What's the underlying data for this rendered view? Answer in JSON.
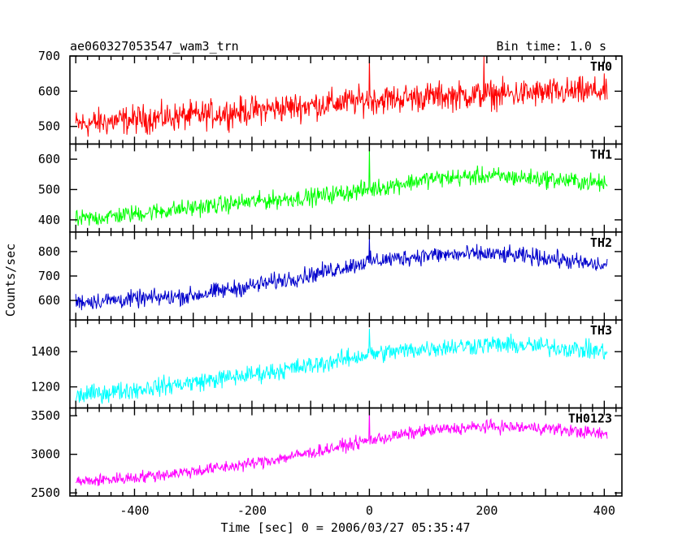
{
  "header": {
    "title": "ae060327053547_wam3_trn",
    "bin_time": "Bin time: 1.0 s"
  },
  "axes": {
    "xlabel": "Time [sec] 0 = 2006/03/27 05:35:47",
    "ylabel": "Counts/sec"
  },
  "chart_data": {
    "type": "line",
    "title": "ae060327053547_wam3_trn",
    "xlabel": "Time [sec] 0 = 2006/03/27 05:35:47",
    "ylabel": "Counts/sec",
    "xlim": [
      -510,
      430
    ],
    "x_ticks": [
      -400,
      -200,
      0,
      200,
      400
    ],
    "bin_time_s": 1.0,
    "panels": [
      {
        "name": "TH0",
        "color": "#ff0000",
        "ylim": [
          450,
          700
        ],
        "y_ticks": [
          500,
          600,
          700
        ],
        "points": [
          [
            -500,
            505
          ],
          [
            -400,
            520
          ],
          [
            -300,
            530
          ],
          [
            -200,
            545
          ],
          [
            -100,
            560
          ],
          [
            0,
            575
          ],
          [
            100,
            585
          ],
          [
            200,
            590
          ],
          [
            300,
            595
          ],
          [
            400,
            600
          ]
        ],
        "noise": 35,
        "spikes": [
          [
            0,
            700
          ],
          [
            195,
            700
          ]
        ]
      },
      {
        "name": "TH1",
        "color": "#00ff00",
        "ylim": [
          360,
          650
        ],
        "y_ticks": [
          400,
          500,
          600
        ],
        "points": [
          [
            -500,
            400
          ],
          [
            -400,
            420
          ],
          [
            -300,
            440
          ],
          [
            -200,
            460
          ],
          [
            -100,
            475
          ],
          [
            0,
            500
          ],
          [
            100,
            535
          ],
          [
            200,
            545
          ],
          [
            300,
            535
          ],
          [
            400,
            520
          ]
        ],
        "noise": 25,
        "spikes": [
          [
            0,
            640
          ]
        ]
      },
      {
        "name": "TH2",
        "color": "#0000cc",
        "ylim": [
          520,
          880
        ],
        "y_ticks": [
          600,
          700,
          800
        ],
        "points": [
          [
            -500,
            595
          ],
          [
            -400,
            605
          ],
          [
            -300,
            620
          ],
          [
            -200,
            660
          ],
          [
            -100,
            705
          ],
          [
            0,
            760
          ],
          [
            100,
            785
          ],
          [
            200,
            790
          ],
          [
            300,
            775
          ],
          [
            400,
            740
          ]
        ],
        "noise": 30,
        "spikes": [
          [
            0,
            860
          ]
        ]
      },
      {
        "name": "TH3",
        "color": "#00ffff",
        "ylim": [
          1080,
          1580
        ],
        "y_ticks": [
          1200,
          1400
        ],
        "points": [
          [
            -500,
            1150
          ],
          [
            -400,
            1185
          ],
          [
            -300,
            1225
          ],
          [
            -200,
            1270
          ],
          [
            -100,
            1320
          ],
          [
            0,
            1385
          ],
          [
            100,
            1420
          ],
          [
            200,
            1440
          ],
          [
            300,
            1430
          ],
          [
            400,
            1400
          ]
        ],
        "noise": 45,
        "spikes": [
          [
            0,
            1530
          ]
        ]
      },
      {
        "name": "TH0123",
        "color": "#ff00ff",
        "ylim": [
          2460,
          3600
        ],
        "y_ticks": [
          2500,
          3000,
          3500
        ],
        "points": [
          [
            -500,
            2640
          ],
          [
            -400,
            2700
          ],
          [
            -300,
            2780
          ],
          [
            -200,
            2880
          ],
          [
            -100,
            3020
          ],
          [
            0,
            3180
          ],
          [
            100,
            3310
          ],
          [
            200,
            3360
          ],
          [
            300,
            3340
          ],
          [
            400,
            3260
          ]
        ],
        "noise": 70,
        "spikes": [
          [
            0,
            3580
          ]
        ]
      }
    ]
  }
}
